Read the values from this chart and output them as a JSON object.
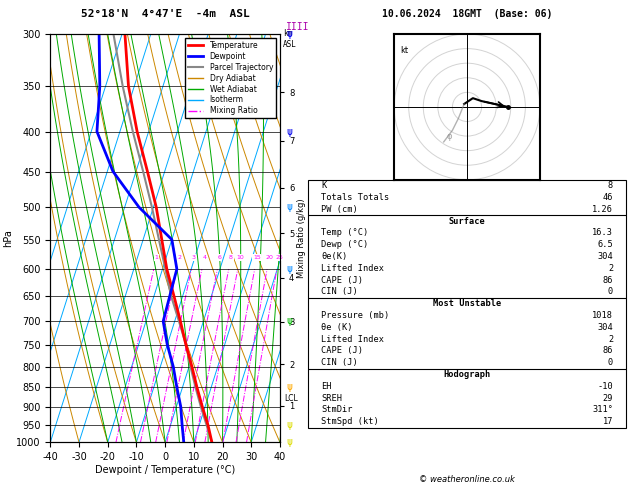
{
  "title_left": "52°18'N  4°47'E  -4m  ASL",
  "title_right": "10.06.2024  18GMT  (Base: 06)",
  "xlabel": "Dewpoint / Temperature (°C)",
  "ylabel_left": "hPa",
  "pressure_levels": [
    300,
    350,
    400,
    450,
    500,
    550,
    600,
    650,
    700,
    750,
    800,
    850,
    900,
    950,
    1000
  ],
  "pressure_min": 300,
  "pressure_max": 1000,
  "temp_min": -40,
  "temp_max": 40,
  "skew_factor": 45,
  "legend_items": [
    {
      "label": "Temperature",
      "color": "#ff0000",
      "lw": 2,
      "ls": "-"
    },
    {
      "label": "Dewpoint",
      "color": "#0000ff",
      "lw": 2,
      "ls": "-"
    },
    {
      "label": "Parcel Trajectory",
      "color": "#888888",
      "lw": 1.5,
      "ls": "-"
    },
    {
      "label": "Dry Adiabat",
      "color": "#cc8800",
      "lw": 1,
      "ls": "-"
    },
    {
      "label": "Wet Adiabat",
      "color": "#00aa00",
      "lw": 1,
      "ls": "-"
    },
    {
      "label": "Isotherm",
      "color": "#00aaff",
      "lw": 1,
      "ls": "-"
    },
    {
      "label": "Mixing Ratio",
      "color": "#ff00ff",
      "lw": 1,
      "ls": "-."
    }
  ],
  "temp_profile": {
    "pressure": [
      1000,
      950,
      900,
      850,
      800,
      750,
      700,
      650,
      600,
      550,
      500,
      450,
      400,
      350,
      300
    ],
    "temp": [
      16.3,
      13.0,
      9.0,
      5.0,
      1.0,
      -3.5,
      -8.0,
      -13.0,
      -18.5,
      -23.5,
      -29.0,
      -36.0,
      -44.0,
      -52.0,
      -59.0
    ]
  },
  "dewp_profile": {
    "pressure": [
      1000,
      950,
      900,
      850,
      800,
      750,
      700,
      650,
      600,
      550,
      500,
      450,
      400,
      350,
      300
    ],
    "temp": [
      6.5,
      4.0,
      1.5,
      -2.0,
      -5.5,
      -10.0,
      -14.0,
      -14.5,
      -15.0,
      -20.0,
      -35.0,
      -48.0,
      -58.0,
      -62.0,
      -68.0
    ]
  },
  "parcel_profile": {
    "pressure": [
      1000,
      950,
      900,
      850,
      800,
      750,
      700,
      650,
      600,
      550,
      500,
      450,
      400,
      350,
      300
    ],
    "temp": [
      16.3,
      12.5,
      8.5,
      4.5,
      0.5,
      -3.5,
      -8.5,
      -14.0,
      -19.0,
      -24.5,
      -30.5,
      -37.5,
      -45.5,
      -54.0,
      -63.0
    ]
  },
  "isotherm_color": "#00aaff",
  "dry_adiabat_color": "#cc8800",
  "wet_adiabat_color": "#00aa00",
  "mixing_ratio_color": "#ff00ff",
  "mixing_ratio_lines": [
    1,
    2,
    3,
    4,
    6,
    8,
    10,
    15,
    20,
    25
  ],
  "km_ticks": [
    {
      "km": 1,
      "p": 898
    },
    {
      "km": 2,
      "p": 795
    },
    {
      "km": 3,
      "p": 701
    },
    {
      "km": 4,
      "p": 616
    },
    {
      "km": 5,
      "p": 540
    },
    {
      "km": 6,
      "p": 472
    },
    {
      "km": 7,
      "p": 411
    },
    {
      "km": 8,
      "p": 356
    }
  ],
  "lcl_pressure": 880,
  "stats_lines": [
    {
      "label": "K",
      "value": "8",
      "header": false
    },
    {
      "label": "Totals Totals",
      "value": "46",
      "header": false
    },
    {
      "label": "PW (cm)",
      "value": "1.26",
      "header": false
    },
    {
      "label": "Surface",
      "value": "",
      "header": true
    },
    {
      "label": "Temp (°C)",
      "value": "16.3",
      "header": false
    },
    {
      "label": "Dewp (°C)",
      "value": "6.5",
      "header": false
    },
    {
      "label": "θe(K)",
      "value": "304",
      "header": false
    },
    {
      "label": "Lifted Index",
      "value": "2",
      "header": false
    },
    {
      "label": "CAPE (J)",
      "value": "86",
      "header": false
    },
    {
      "label": "CIN (J)",
      "value": "0",
      "header": false
    },
    {
      "label": "Most Unstable",
      "value": "",
      "header": true
    },
    {
      "label": "Pressure (mb)",
      "value": "1018",
      "header": false
    },
    {
      "label": "θe (K)",
      "value": "304",
      "header": false
    },
    {
      "label": "Lifted Index",
      "value": "2",
      "header": false
    },
    {
      "label": "CAPE (J)",
      "value": "86",
      "header": false
    },
    {
      "label": "CIN (J)",
      "value": "0",
      "header": false
    },
    {
      "label": "Hodograph",
      "value": "",
      "header": true
    },
    {
      "label": "EH",
      "value": "-10",
      "header": false
    },
    {
      "label": "SREH",
      "value": "29",
      "header": false
    },
    {
      "label": "StmDir",
      "value": "311°",
      "header": false
    },
    {
      "label": "StmSpd (kt)",
      "value": "17",
      "header": false
    }
  ],
  "copyright": "© weatheronline.co.uk",
  "wind_barb_colors": [
    {
      "p": 300,
      "color": "#0000ff"
    },
    {
      "p": 400,
      "color": "#0000ee"
    },
    {
      "p": 500,
      "color": "#0088ff"
    },
    {
      "p": 600,
      "color": "#0088ff"
    },
    {
      "p": 700,
      "color": "#00bb00"
    },
    {
      "p": 850,
      "color": "#ffaa00"
    },
    {
      "p": 950,
      "color": "#dddd00"
    },
    {
      "p": 1000,
      "color": "#dddd00"
    }
  ]
}
